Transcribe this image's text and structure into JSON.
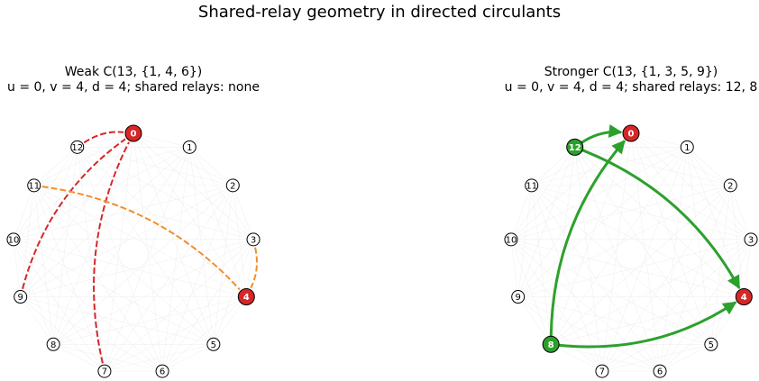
{
  "title": "Shared-relay geometry in directed circulants",
  "panels": [
    {
      "title_line1": "Weak C(13, {1, 4, 6})",
      "title_line2": "u = 0, v = 4, d = 4; shared relays: none",
      "nodes": [
        "0",
        "1",
        "2",
        "3",
        "4",
        "5",
        "6",
        "7",
        "8",
        "9",
        "10",
        "11",
        "12"
      ],
      "endpoints": [
        0,
        4
      ],
      "endpoint_color": "#d62728",
      "relays": [],
      "relay_color": "#2ca02c",
      "edges": [
        {
          "from": 12,
          "to": 0,
          "color": "#d62728",
          "style": "dashed"
        },
        {
          "from": 9,
          "to": 0,
          "color": "#d62728",
          "style": "dashed"
        },
        {
          "from": 7,
          "to": 0,
          "color": "#d62728",
          "style": "dashed"
        },
        {
          "from": 11,
          "to": 4,
          "color": "#f28e2b",
          "style": "dashed"
        },
        {
          "from": 3,
          "to": 4,
          "color": "#f28e2b",
          "style": "dashed"
        }
      ]
    },
    {
      "title_line1": "Stronger C(13, {1, 3, 5, 9})",
      "title_line2": "u = 0, v = 4, d = 4; shared relays: 12, 8",
      "nodes": [
        "0",
        "1",
        "2",
        "3",
        "4",
        "5",
        "6",
        "7",
        "8",
        "9",
        "10",
        "11",
        "12"
      ],
      "endpoints": [
        0,
        4
      ],
      "endpoint_color": "#d62728",
      "relays": [
        12,
        8
      ],
      "relay_color": "#2ca02c",
      "edges": [
        {
          "from": 12,
          "to": 0,
          "color": "#2ca02c",
          "style": "solid"
        },
        {
          "from": 12,
          "to": 4,
          "color": "#2ca02c",
          "style": "solid"
        },
        {
          "from": 8,
          "to": 0,
          "color": "#2ca02c",
          "style": "solid"
        },
        {
          "from": 8,
          "to": 4,
          "color": "#2ca02c",
          "style": "solid"
        }
      ]
    }
  ]
}
